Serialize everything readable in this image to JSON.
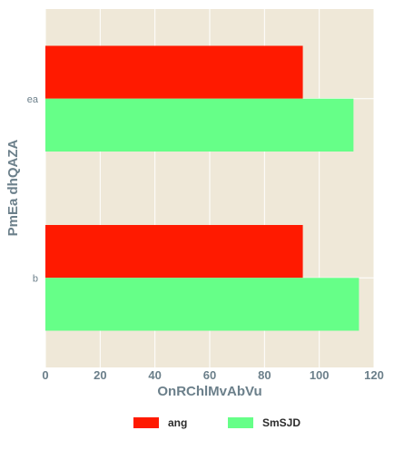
{
  "chart_data": {
    "type": "bar",
    "orientation": "horizontal",
    "categories": [
      "ea",
      "b"
    ],
    "series": [
      {
        "name": "ang",
        "values": [
          94,
          94
        ],
        "color": "#ff1a00"
      },
      {
        "name": "SmSJD",
        "values": [
          112.5,
          114.5
        ],
        "color": "#66ff88"
      }
    ],
    "xlabel": "OnRChlMvAbVu",
    "ylabel": "PmEa dhQAZA",
    "xlim": [
      0,
      120
    ],
    "xticks": [
      "0",
      "20",
      "40",
      "60",
      "80",
      "100",
      "120"
    ],
    "grid": true,
    "legend_position": "bottom-center",
    "plot_background": "#efe8d8"
  }
}
